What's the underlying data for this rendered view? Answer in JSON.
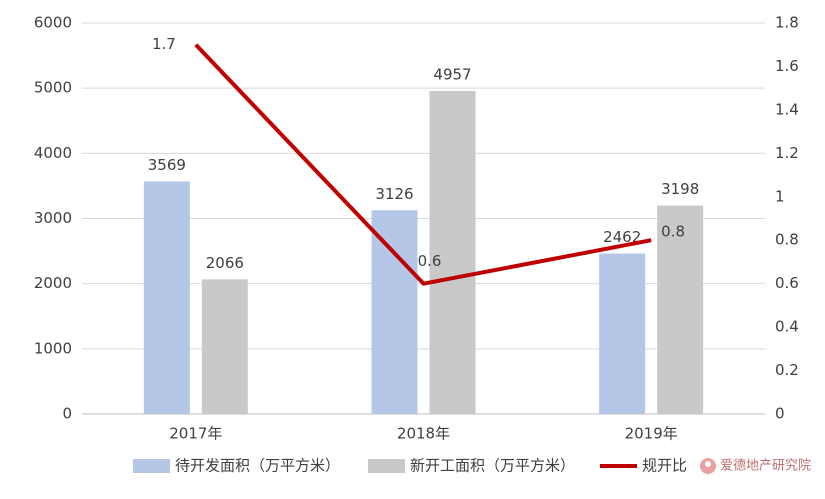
{
  "chart_data": {
    "type": "combo",
    "categories": [
      "2017年",
      "2018年",
      "2019年"
    ],
    "series": [
      {
        "name": "待开发面积（万平方米）",
        "type": "bar",
        "color": "#b4c7e7",
        "values": [
          3569,
          3126,
          2462
        ]
      },
      {
        "name": "新开工面积（万平方米）",
        "type": "bar",
        "color": "#c9c9c9",
        "values": [
          2066,
          4957,
          3198
        ]
      },
      {
        "name": "规开比",
        "type": "line",
        "axis": "y2",
        "color": "#c00000",
        "values": [
          1.7,
          0.6,
          0.8
        ]
      }
    ],
    "ylim": [
      0,
      6000
    ],
    "yticks": [
      0,
      1000,
      2000,
      3000,
      4000,
      5000,
      6000
    ],
    "y2lim": [
      0,
      1.8
    ],
    "y2ticks": [
      0,
      0.2,
      0.4,
      0.6,
      0.8,
      1,
      1.2,
      1.4,
      1.6,
      1.8
    ],
    "grid": true,
    "legend": "bottom",
    "watermark": "爱德地产研究院"
  }
}
